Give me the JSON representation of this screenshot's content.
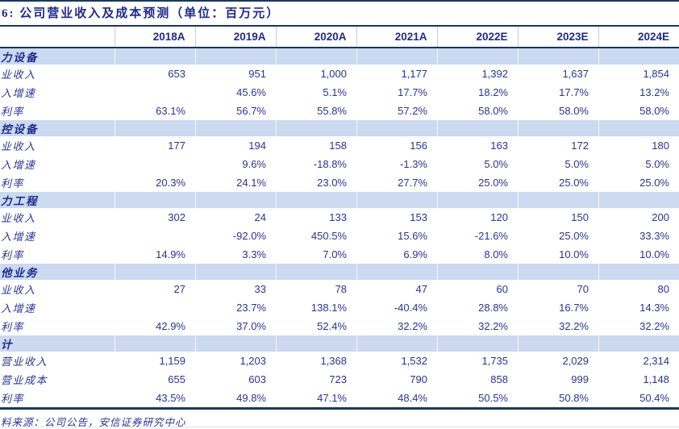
{
  "page": {
    "title": "6: 公司营业收入及成本预测（单位：百万元）",
    "source_note": "料来源：公司公告，安信证券研究中心"
  },
  "colors": {
    "text_navy": "#2A3398",
    "header_navy": "#1E2B8C",
    "rule_navy": "#17375E",
    "band_blue": "#CBD9F1"
  },
  "table": {
    "type": "table",
    "columns": [
      "2018A",
      "2019A",
      "2020A",
      "2021A",
      "2022E",
      "2023E",
      "2024E"
    ],
    "sections": [
      {
        "header": "力设备",
        "rows": [
          {
            "label": "业收入",
            "values": [
              "653",
              "951",
              "1,000",
              "1,177",
              "1,392",
              "1,637",
              "1,854"
            ]
          },
          {
            "label": "入增速",
            "values": [
              "",
              "45.6%",
              "5.1%",
              "17.7%",
              "18.2%",
              "17.7%",
              "13.2%"
            ]
          },
          {
            "label": "利率",
            "values": [
              "63.1%",
              "56.7%",
              "55.8%",
              "57.2%",
              "58.0%",
              "58.0%",
              "58.0%"
            ]
          }
        ]
      },
      {
        "header": "控设备",
        "rows": [
          {
            "label": "业收入",
            "values": [
              "177",
              "194",
              "158",
              "156",
              "163",
              "172",
              "180"
            ]
          },
          {
            "label": "入增速",
            "values": [
              "",
              "9.6%",
              "-18.8%",
              "-1.3%",
              "5.0%",
              "5.0%",
              "5.0%"
            ]
          },
          {
            "label": "利率",
            "values": [
              "20.3%",
              "24.1%",
              "23.0%",
              "27.7%",
              "25.0%",
              "25.0%",
              "25.0%"
            ]
          }
        ]
      },
      {
        "header": "力工程",
        "rows": [
          {
            "label": "业收入",
            "values": [
              "302",
              "24",
              "133",
              "153",
              "120",
              "150",
              "200"
            ]
          },
          {
            "label": "入增速",
            "values": [
              "",
              "-92.0%",
              "450.5%",
              "15.6%",
              "-21.6%",
              "25.0%",
              "33.3%"
            ]
          },
          {
            "label": "利率",
            "values": [
              "14.9%",
              "3.3%",
              "7.0%",
              "6.9%",
              "8.0%",
              "10.0%",
              "10.0%"
            ]
          }
        ]
      },
      {
        "header": "他业务",
        "rows": [
          {
            "label": "业收入",
            "values": [
              "27",
              "33",
              "78",
              "47",
              "60",
              "70",
              "80"
            ]
          },
          {
            "label": "入增速",
            "values": [
              "",
              "23.7%",
              "138.1%",
              "-40.4%",
              "28.8%",
              "16.7%",
              "14.3%"
            ]
          },
          {
            "label": "利率",
            "values": [
              "42.9%",
              "37.0%",
              "52.4%",
              "32.2%",
              "32.2%",
              "32.2%",
              "32.2%"
            ]
          }
        ]
      },
      {
        "header": "计",
        "rows": [
          {
            "label": "营业收入",
            "values": [
              "1,159",
              "1,203",
              "1,368",
              "1,532",
              "1,735",
              "2,029",
              "2,314"
            ]
          },
          {
            "label": "营业成本",
            "values": [
              "655",
              "603",
              "723",
              "790",
              "858",
              "999",
              "1,148"
            ]
          },
          {
            "label": "利率",
            "values": [
              "43.5%",
              "49.8%",
              "47.1%",
              "48.4%",
              "50.5%",
              "50.8%",
              "50.4%"
            ]
          }
        ]
      }
    ]
  }
}
